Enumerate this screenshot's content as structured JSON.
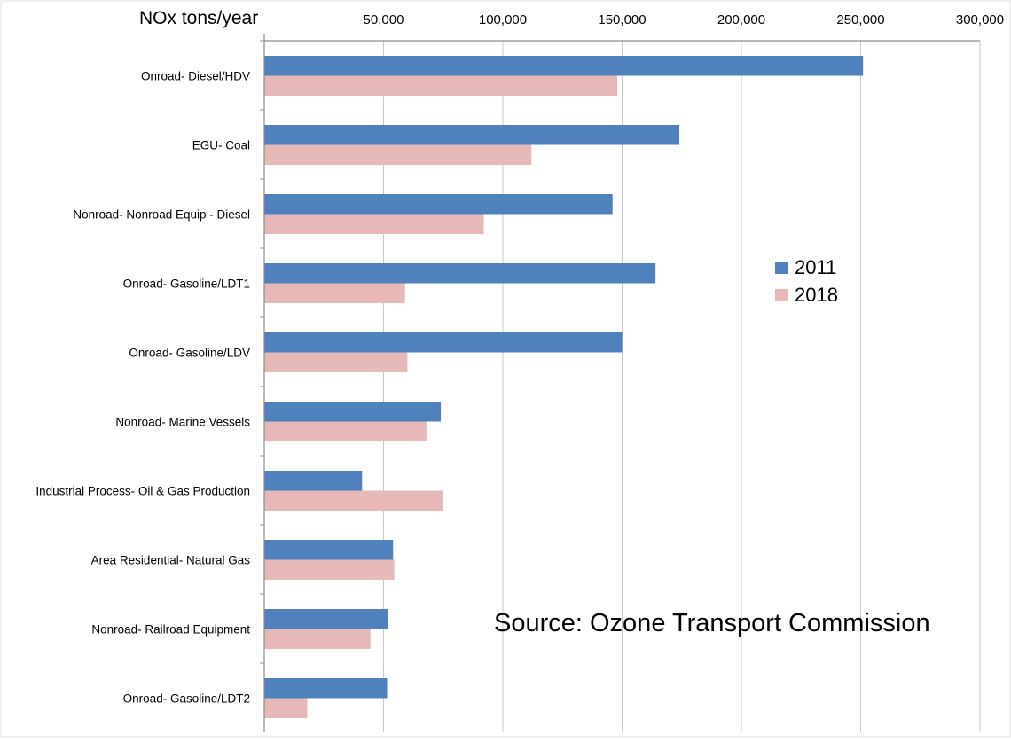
{
  "chart_data": {
    "type": "bar",
    "orientation": "horizontal",
    "title": "",
    "xlabel": "NOx tons/year",
    "ylabel": "",
    "xlim": [
      0,
      300000
    ],
    "x_ticks": [
      "50,000",
      "100,000",
      "150,000",
      "200,000",
      "250,000",
      "300,000"
    ],
    "x_tick_values": [
      50000,
      100000,
      150000,
      200000,
      250000,
      300000
    ],
    "axis_position": "top",
    "grid": true,
    "legend_position": "right",
    "categories": [
      "Onroad- Diesel/HDV",
      "EGU- Coal",
      "Nonroad- Nonroad Equip - Diesel",
      "Onroad- Gasoline/LDT1",
      "Onroad- Gasoline/LDV",
      "Nonroad- Marine Vessels",
      "Industrial Process- Oil & Gas Production",
      "Area Residential- Natural Gas",
      "Nonroad- Railroad Equipment",
      "Onroad- Gasoline/LDT2"
    ],
    "series": [
      {
        "name": "2011",
        "color": "#4f81bd",
        "values": [
          251000,
          174000,
          146000,
          164000,
          150000,
          74000,
          41000,
          54000,
          52000,
          51500
        ]
      },
      {
        "name": "2018",
        "color": "#e6b9b8",
        "values": [
          148000,
          112000,
          92000,
          59000,
          60000,
          68000,
          75000,
          54500,
          44500,
          18000
        ]
      }
    ],
    "annotation": "Source: Ozone Transport Commission"
  }
}
